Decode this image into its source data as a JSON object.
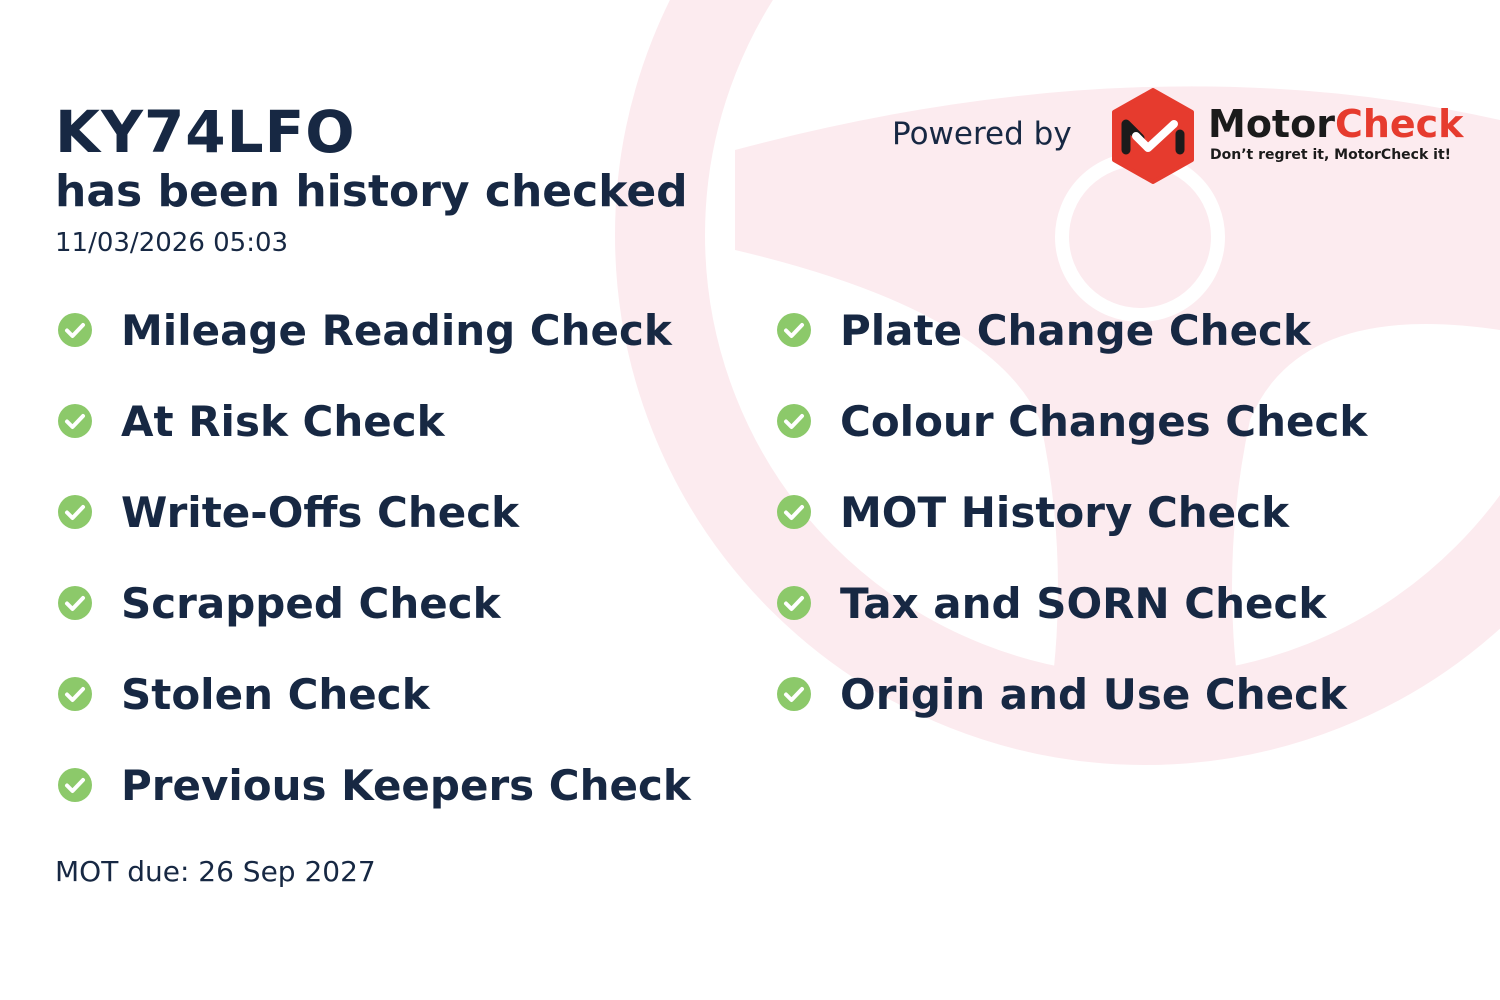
{
  "registration": "KY74LFO",
  "subtitle": "has been history checked",
  "checked_at": "11/03/2026 05:03",
  "powered_by": "Powered by",
  "brand": {
    "name_part1": "Motor",
    "name_part2": "Check",
    "tagline": "Don’t regret it, MotorCheck it!",
    "color": "#e63b2e"
  },
  "checks_left": [
    "Mileage Reading Check",
    "At Risk Check",
    "Write-Offs Check",
    "Scrapped Check",
    "Stolen Check",
    "Previous Keepers Check"
  ],
  "checks_right": [
    "Plate Change Check",
    "Colour Changes Check",
    "MOT History Check",
    "Tax and SORN Check",
    "Origin and Use Check"
  ],
  "check_icon": "check-circle-icon",
  "check_color": "#8cc96a",
  "text_color": "#172843",
  "mot_due": "MOT due: 26 Sep 2027"
}
